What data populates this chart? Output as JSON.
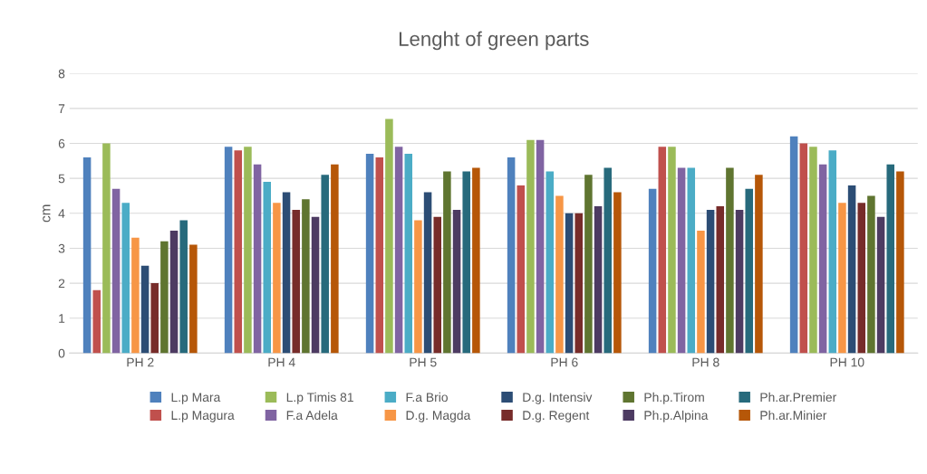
{
  "chart_data": {
    "type": "bar",
    "title": "Lenght of green parts",
    "ylabel": "cm",
    "categories": [
      "PH 2",
      "PH 4",
      "PH 5",
      "PH 6",
      "PH 8",
      "PH 10"
    ],
    "series": [
      {
        "name": "L.p Mara",
        "color": "#4f81bd",
        "values": [
          5.6,
          5.9,
          5.7,
          5.6,
          4.7,
          6.2
        ]
      },
      {
        "name": "L.p Magura",
        "color": "#c0504d",
        "values": [
          1.8,
          5.8,
          5.6,
          4.8,
          5.9,
          6.0
        ]
      },
      {
        "name": "L.p Timis 81",
        "color": "#9bbb59",
        "values": [
          6.0,
          5.9,
          6.7,
          6.1,
          5.9,
          5.9
        ]
      },
      {
        "name": "F.a Adela",
        "color": "#8064a2",
        "values": [
          4.7,
          5.4,
          5.9,
          6.1,
          5.3,
          5.4
        ]
      },
      {
        "name": "F.a Brio",
        "color": "#4bacc6",
        "values": [
          4.3,
          4.9,
          5.7,
          5.2,
          5.3,
          5.8
        ]
      },
      {
        "name": "D.g. Magda",
        "color": "#f79646",
        "values": [
          3.3,
          4.3,
          3.8,
          4.5,
          3.5,
          4.3
        ]
      },
      {
        "name": "D.g. Intensiv",
        "color": "#2c4d75",
        "values": [
          2.5,
          4.6,
          4.6,
          4.0,
          4.1,
          4.8
        ]
      },
      {
        "name": "D.g. Regent",
        "color": "#772c2a",
        "values": [
          2.0,
          4.1,
          3.9,
          4.0,
          4.2,
          4.3
        ]
      },
      {
        "name": "Ph.p.Tirom",
        "color": "#5f7530",
        "values": [
          3.2,
          4.4,
          5.2,
          5.1,
          5.3,
          4.5
        ]
      },
      {
        "name": "Ph.p.Alpina",
        "color": "#4d3b62",
        "values": [
          3.5,
          3.9,
          4.1,
          4.2,
          4.1,
          3.9
        ]
      },
      {
        "name": "Ph.ar.Premier",
        "color": "#276a7c",
        "values": [
          3.8,
          5.1,
          5.2,
          5.3,
          4.7,
          5.4
        ]
      },
      {
        "name": "Ph.ar.Minier",
        "color": "#b65708",
        "values": [
          3.1,
          5.4,
          5.3,
          4.6,
          5.1,
          5.2
        ]
      }
    ],
    "ylim": [
      0,
      8
    ],
    "yticks": [
      0,
      1,
      2,
      3,
      4,
      5,
      6,
      7,
      8
    ],
    "grid": "y",
    "legend": "bottom"
  }
}
